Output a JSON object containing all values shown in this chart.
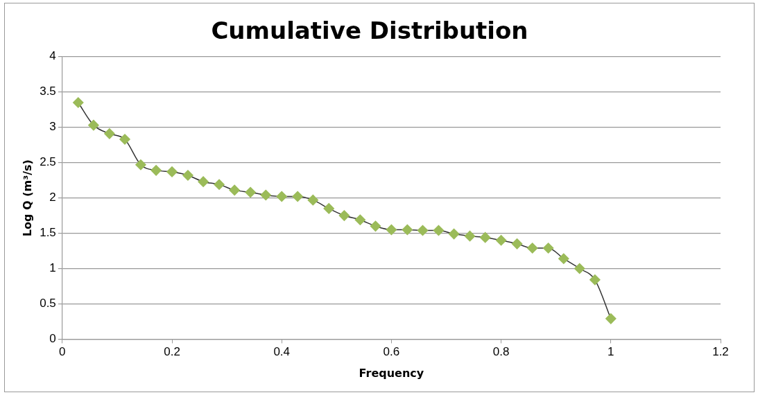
{
  "chart_data": {
    "type": "line",
    "title": "Cumulative Distribution",
    "xlabel": "Frequency",
    "ylabel": "Log Q (m³/s)",
    "x": [
      0.029,
      0.057,
      0.086,
      0.114,
      0.143,
      0.171,
      0.2,
      0.229,
      0.257,
      0.286,
      0.314,
      0.343,
      0.371,
      0.4,
      0.429,
      0.457,
      0.486,
      0.514,
      0.543,
      0.571,
      0.6,
      0.629,
      0.657,
      0.686,
      0.714,
      0.743,
      0.771,
      0.8,
      0.829,
      0.857,
      0.886,
      0.914,
      0.943,
      0.971,
      1.0
    ],
    "series": [
      {
        "color": "#9bbb59",
        "values": [
          3.35,
          3.03,
          2.91,
          2.83,
          2.47,
          2.39,
          2.37,
          2.32,
          2.23,
          2.19,
          2.11,
          2.08,
          2.04,
          2.02,
          2.02,
          1.97,
          1.85,
          1.75,
          1.69,
          1.6,
          1.55,
          1.55,
          1.54,
          1.54,
          1.49,
          1.46,
          1.44,
          1.4,
          1.35,
          1.29,
          1.29,
          1.14,
          1.0,
          0.84,
          0.29
        ]
      }
    ],
    "xlim": [
      0,
      1.2
    ],
    "xticks": [
      0,
      0.2,
      0.4,
      0.6,
      0.8,
      1,
      1.2
    ],
    "ylim": [
      0,
      4
    ],
    "yticks": [
      0,
      0.5,
      1,
      1.5,
      2,
      2.5,
      3,
      3.5,
      4
    ],
    "grid": "y",
    "legend": false,
    "marker": "diamond",
    "line_style": "solid"
  }
}
